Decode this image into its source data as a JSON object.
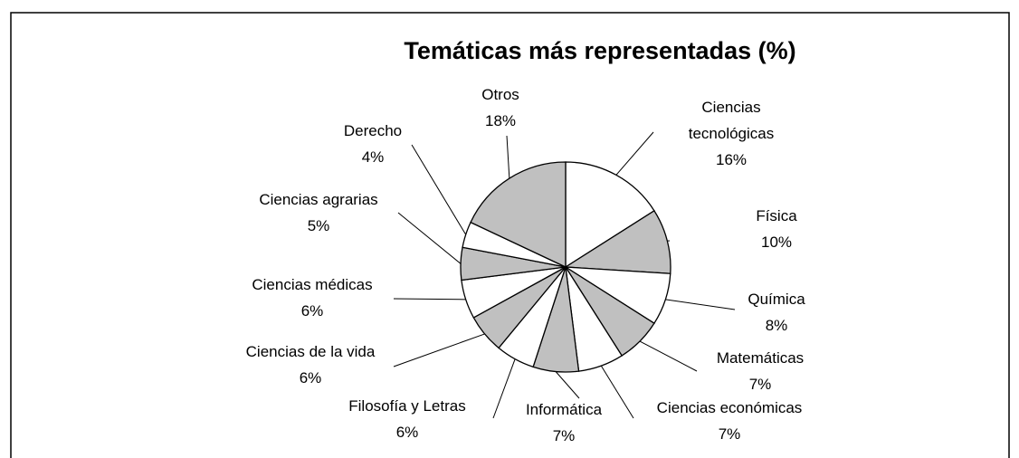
{
  "chart_data": {
    "type": "pie",
    "title": "Temáticas más representadas (%)",
    "categories": [
      "Ciencias tecnológicas",
      "Física",
      "Química",
      "Matemáticas",
      "Ciencias económicas",
      "Informática",
      "Filosofía y Letras",
      "Ciencias de la vida",
      "Ciencias médicas",
      "Ciencias agrarias",
      "Derecho",
      "Otros"
    ],
    "values": [
      16,
      10,
      8,
      7,
      7,
      7,
      6,
      6,
      6,
      5,
      4,
      18
    ],
    "value_labels": [
      "16%",
      "10%",
      "8%",
      "7%",
      "7%",
      "7%",
      "6%",
      "6%",
      "6%",
      "5%",
      "4%",
      "18%"
    ],
    "colors": [
      "#ffffff",
      "#c0c0c0",
      "#ffffff",
      "#c0c0c0",
      "#ffffff",
      "#c0c0c0",
      "#ffffff",
      "#c0c0c0",
      "#ffffff",
      "#c0c0c0",
      "#ffffff",
      "#c0c0c0"
    ]
  }
}
